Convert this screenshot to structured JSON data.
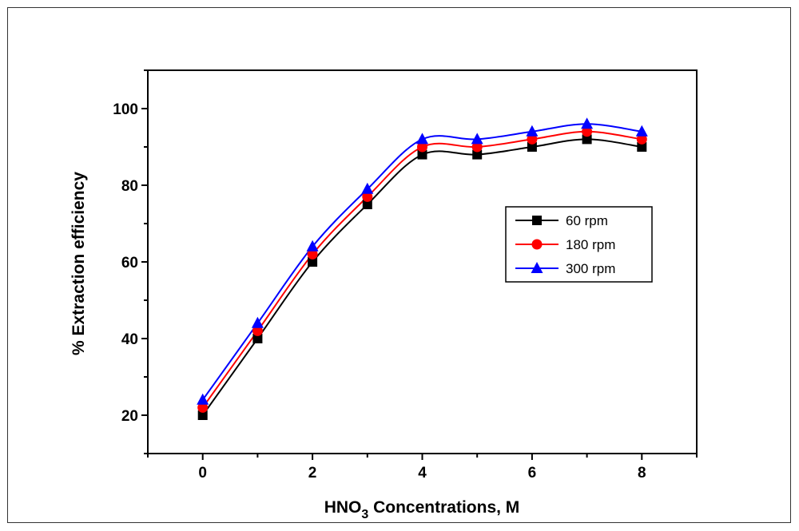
{
  "chart_data": {
    "type": "line",
    "title": "",
    "xlabel": "HNO3 Concentrations, M",
    "xlabel_main": "HNO",
    "xlabel_sub": "3",
    "xlabel_rest": " Concentrations, M",
    "ylabel": "% Extraction efficiency",
    "xlim": [
      -1,
      9
    ],
    "ylim": [
      10,
      110
    ],
    "xticks": [
      0,
      2,
      4,
      6,
      8
    ],
    "yticks": [
      20,
      40,
      60,
      80,
      100
    ],
    "x": [
      0,
      1,
      2,
      3,
      4,
      5,
      6,
      7,
      8
    ],
    "legend_position": "right-middle",
    "series": [
      {
        "name": "60 rpm",
        "color": "#000000",
        "marker": "square",
        "values": [
          20,
          40,
          60,
          75,
          88,
          88,
          90,
          92,
          90
        ]
      },
      {
        "name": "180 rpm",
        "color": "#ff0000",
        "marker": "circle",
        "values": [
          22,
          42,
          62,
          77,
          90,
          90,
          92,
          94,
          92
        ]
      },
      {
        "name": "300 rpm",
        "color": "#0000ff",
        "marker": "triangle",
        "values": [
          24,
          44,
          64,
          79,
          92,
          92,
          94,
          96,
          94
        ]
      }
    ]
  }
}
